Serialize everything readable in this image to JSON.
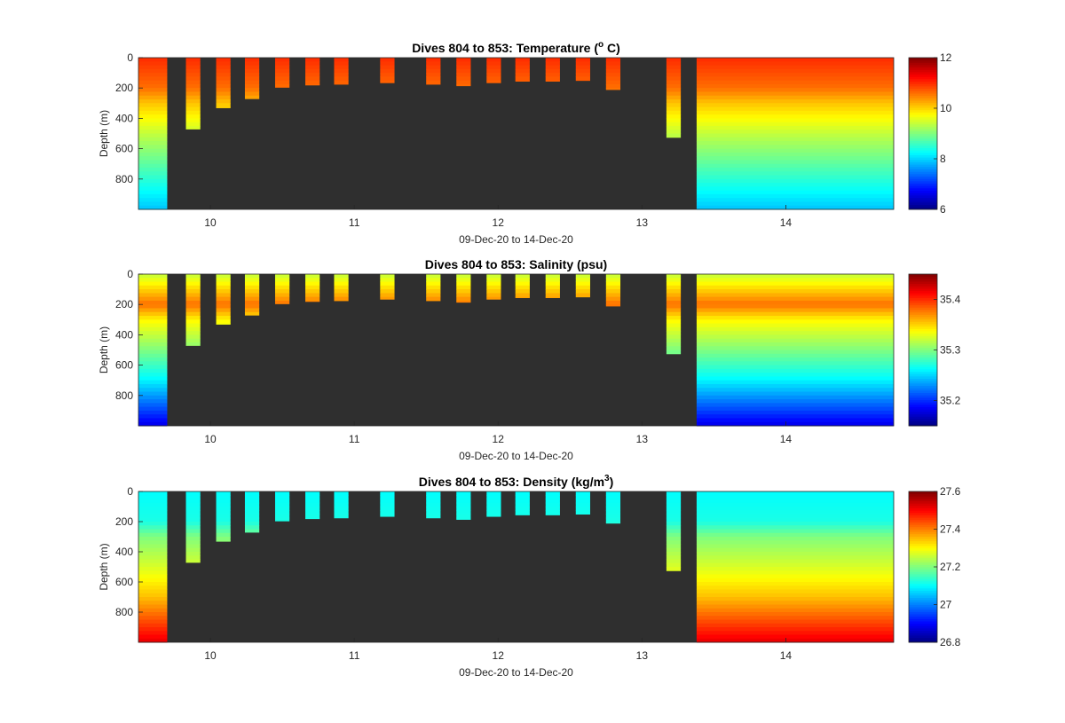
{
  "chart_data": [
    {
      "type": "heatmap",
      "title": "Dives 804 to 853: Temperature (",
      "title_sup": "o",
      "title_suffix": " C)",
      "ylabel": "Depth (m)",
      "xlabel": "09-Dec-20 to 14-Dec-20",
      "xlim": [
        9.5,
        14.75
      ],
      "ylim": [
        0,
        1000
      ],
      "y_reversed": true,
      "xticks": [
        10,
        11,
        12,
        13,
        14
      ],
      "yticks": [
        0,
        200,
        400,
        600,
        800
      ],
      "clim": [
        6,
        12
      ],
      "cticks": [
        6,
        8,
        10,
        12
      ],
      "colormap": "jet",
      "background_color": "#2f2f2f",
      "profile": {
        "surface": 11.0,
        "d200": 10.6,
        "d300": 10.1,
        "d500": 9.4,
        "d700": 8.8,
        "bottom": 7.9
      }
    },
    {
      "type": "heatmap",
      "title": "Dives 804 to 853: Salinity (psu)",
      "title_sup": "",
      "title_suffix": "",
      "ylabel": "Depth (m)",
      "xlabel": "09-Dec-20 to 14-Dec-20",
      "xlim": [
        9.5,
        14.75
      ],
      "ylim": [
        0,
        1000
      ],
      "y_reversed": true,
      "xticks": [
        10,
        11,
        12,
        13,
        14
      ],
      "yticks": [
        0,
        200,
        400,
        600,
        800
      ],
      "clim": [
        35.15,
        35.45
      ],
      "cticks": [
        35.2,
        35.3,
        35.4
      ],
      "colormap": "jet",
      "background_color": "#2f2f2f",
      "profile": {
        "surface": 35.32,
        "d200": 35.38,
        "d300": 35.34,
        "d500": 35.3,
        "d700": 35.26,
        "bottom": 35.18
      }
    },
    {
      "type": "heatmap",
      "title": "Dives 804 to 853: Density (kg/m",
      "title_sup": "3",
      "title_suffix": ")",
      "ylabel": "Depth (m)",
      "xlabel": "09-Dec-20 to 14-Dec-20",
      "xlim": [
        9.5,
        14.75
      ],
      "ylim": [
        0,
        1000
      ],
      "y_reversed": true,
      "xticks": [
        10,
        11,
        12,
        13,
        14
      ],
      "yticks": [
        0,
        200,
        400,
        600,
        800
      ],
      "clim": [
        26.8,
        27.6
      ],
      "cticks": [
        26.8,
        27,
        27.2,
        27.4,
        27.6
      ],
      "colormap": "jet",
      "background_color": "#2f2f2f",
      "profile": {
        "surface": 27.1,
        "d200": 27.12,
        "d300": 27.2,
        "d500": 27.27,
        "d700": 27.35,
        "bottom": 27.52
      }
    }
  ],
  "dives": [
    {
      "start": 9.5,
      "end": 9.7,
      "max_depth": 1000
    },
    {
      "start": 9.83,
      "end": 9.93,
      "max_depth": 470
    },
    {
      "start": 10.04,
      "end": 10.14,
      "max_depth": 330
    },
    {
      "start": 10.24,
      "end": 10.34,
      "max_depth": 270
    },
    {
      "start": 10.45,
      "end": 10.55,
      "max_depth": 195
    },
    {
      "start": 10.66,
      "end": 10.76,
      "max_depth": 180
    },
    {
      "start": 10.86,
      "end": 10.96,
      "max_depth": 175
    },
    {
      "start": 11.18,
      "end": 11.28,
      "max_depth": 165
    },
    {
      "start": 11.5,
      "end": 11.6,
      "max_depth": 175
    },
    {
      "start": 11.71,
      "end": 11.81,
      "max_depth": 185
    },
    {
      "start": 11.92,
      "end": 12.02,
      "max_depth": 165
    },
    {
      "start": 12.12,
      "end": 12.22,
      "max_depth": 155
    },
    {
      "start": 12.33,
      "end": 12.43,
      "max_depth": 155
    },
    {
      "start": 12.54,
      "end": 12.64,
      "max_depth": 150
    },
    {
      "start": 12.75,
      "end": 12.85,
      "max_depth": 210
    },
    {
      "start": 13.17,
      "end": 13.27,
      "max_depth": 525
    },
    {
      "start": 13.38,
      "end": 14.75,
      "max_depth": 1000
    }
  ]
}
